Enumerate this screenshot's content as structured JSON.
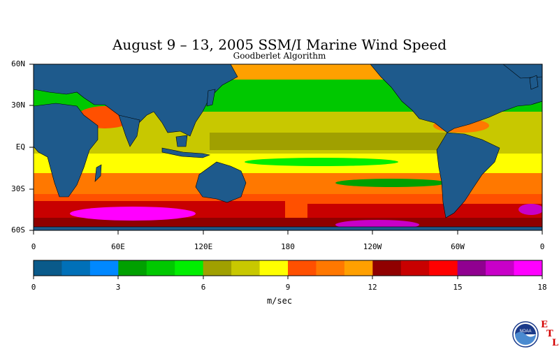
{
  "title": "August 9 – 13, 2005 SSM/I Marine Wind Speed",
  "subtitle": "Goodberlet Algorithm",
  "lat_labels": [
    "60N",
    "30N",
    "EQ",
    "30S",
    "60S"
  ],
  "lon_labels": [
    "0",
    "60E",
    "120E",
    "180",
    "120W",
    "60W",
    "0"
  ],
  "colorbar": {
    "ticks": [
      "0",
      "3",
      "6",
      "9",
      "12",
      "15",
      "18"
    ],
    "units": "m/sec",
    "colors": [
      "#0a5a8a",
      "#0070b8",
      "#0088ff",
      "#00a000",
      "#00c800",
      "#00ee00",
      "#a0a000",
      "#c8c800",
      "#ffff00",
      "#ff5000",
      "#ff7800",
      "#ffa000",
      "#900000",
      "#c80000",
      "#ff0000",
      "#900090",
      "#c800c8",
      "#ff00ff"
    ]
  },
  "land_color": "#1e5a8c",
  "logo": {
    "agency": "NOAA",
    "lab": [
      "E",
      "T",
      "L"
    ]
  }
}
